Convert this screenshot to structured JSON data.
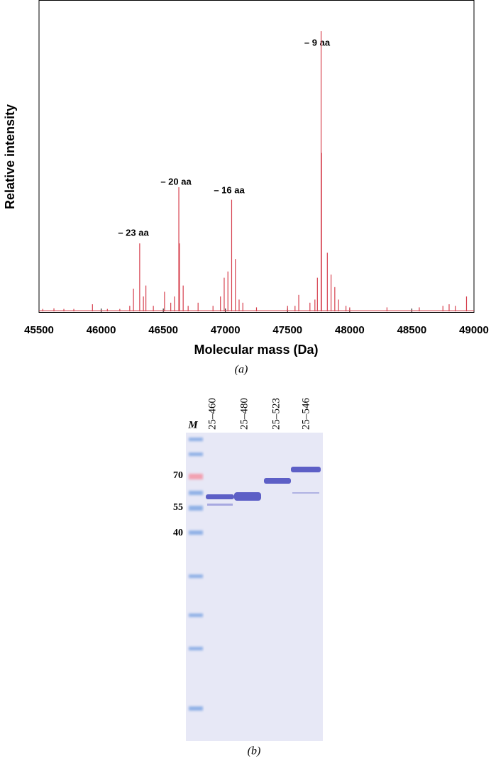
{
  "chart_data": {
    "type": "stem",
    "x_label": "Molecular mass (Da)",
    "y_label": "Relative intensity",
    "color": "#d6404e",
    "x": [
      45530,
      45620,
      45700,
      45780,
      45930,
      46050,
      46150,
      46230,
      46260,
      46310,
      46340,
      46360,
      46420,
      46510,
      46560,
      46590,
      46625,
      46630,
      46660,
      46700,
      46780,
      46900,
      46960,
      46990,
      47020,
      47050,
      47080,
      47110,
      47140,
      47250,
      47500,
      47560,
      47590,
      47680,
      47720,
      47740,
      47770,
      47773,
      47820,
      47850,
      47880,
      47910,
      47970,
      48000,
      48300,
      48560,
      48750,
      48800,
      48850,
      48940
    ],
    "values": [
      1,
      1.2,
      1,
      1,
      2.5,
      1,
      1,
      2,
      7.5,
      22,
      5,
      8.5,
      2,
      6.5,
      3,
      5,
      40,
      22,
      8.5,
      2,
      3,
      2,
      5,
      11,
      13,
      36,
      17,
      4,
      3,
      1.5,
      2,
      2,
      5.5,
      3,
      4,
      11,
      90,
      51,
      19,
      12,
      8,
      4,
      2,
      1.5,
      1.5,
      1.5,
      2,
      2.5,
      2,
      5
    ],
    "xlim": [
      45500,
      49000
    ],
    "ylim": [
      0,
      100
    ],
    "xticks": [
      45500,
      46000,
      46500,
      47000,
      47500,
      48000,
      48500,
      49000
    ],
    "annotations": [
      "– 23 aa",
      "– 20 aa",
      "– 16 aa",
      "– 9 aa"
    ],
    "caption": "(a)"
  },
  "gel": {
    "marker_lane": "M",
    "lanes": [
      "25–460",
      "25–480",
      "25–523",
      "25–546"
    ],
    "marker_sizes": [
      "70",
      "55",
      "40"
    ],
    "caption": "(b)"
  }
}
